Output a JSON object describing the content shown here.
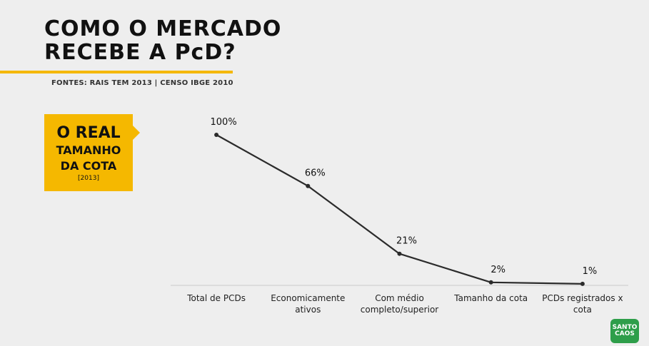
{
  "header": {
    "title_line1": "COMO O MERCADO",
    "title_line2": "RECEBE A PcD?",
    "sources": "FONTES: RAIS TEM 2013 | CENSO IBGE 2010"
  },
  "callout": {
    "line1": "O REAL",
    "line2": "TAMANHO",
    "line3": "DA COTA",
    "line4": "[2013]"
  },
  "logo": {
    "text": "SANTO CAOS"
  },
  "colors": {
    "accent": "#f5b800",
    "line": "#2b2b2b",
    "logo": "#2e9e4a"
  },
  "chart_data": {
    "type": "line",
    "categories": [
      [
        "Total de PCDs"
      ],
      [
        "Economicamente",
        "ativos"
      ],
      [
        "Com médio",
        "completo/superior"
      ],
      [
        "Tamanho da cota"
      ],
      [
        "PCDs registrados x",
        "cota"
      ]
    ],
    "values": [
      100,
      66,
      21,
      2,
      1
    ],
    "value_labels": [
      "100%",
      "66%",
      "21%",
      "2%",
      "1%"
    ],
    "ylim": [
      0,
      100
    ],
    "grid": false,
    "title": "",
    "xlabel": "",
    "ylabel": ""
  }
}
